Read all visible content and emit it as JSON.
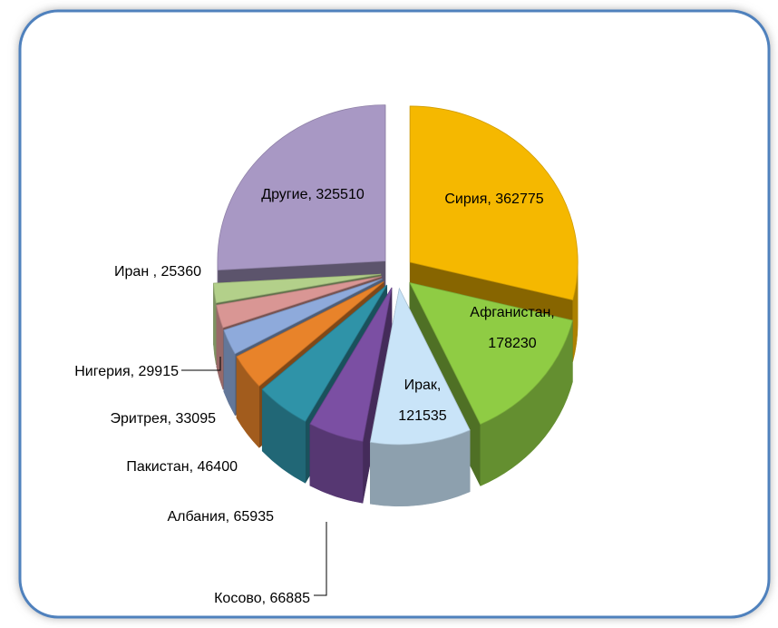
{
  "chart_data": {
    "type": "pie",
    "values": [
      362775,
      178230,
      121535,
      66885,
      65935,
      46400,
      33095,
      29915,
      25360,
      325510
    ],
    "value_labels": [
      "Сирия, 362775",
      "Афганистан, 178230",
      "Ирак, 121535",
      "Косово, 66885",
      "Албания, 65935",
      "Пакистан, 46400",
      "Эритрея, 33095",
      "Нигерия, 29915",
      "Иран , 25360",
      "Другие, 325510"
    ],
    "colors": [
      "#f5b800",
      "#8fcc44",
      "#c9e4f8",
      "#7b4fa3",
      "#2f93a8",
      "#e8832a",
      "#8eaadb",
      "#d99694",
      "#b3d08a",
      "#a898c4"
    ]
  }
}
